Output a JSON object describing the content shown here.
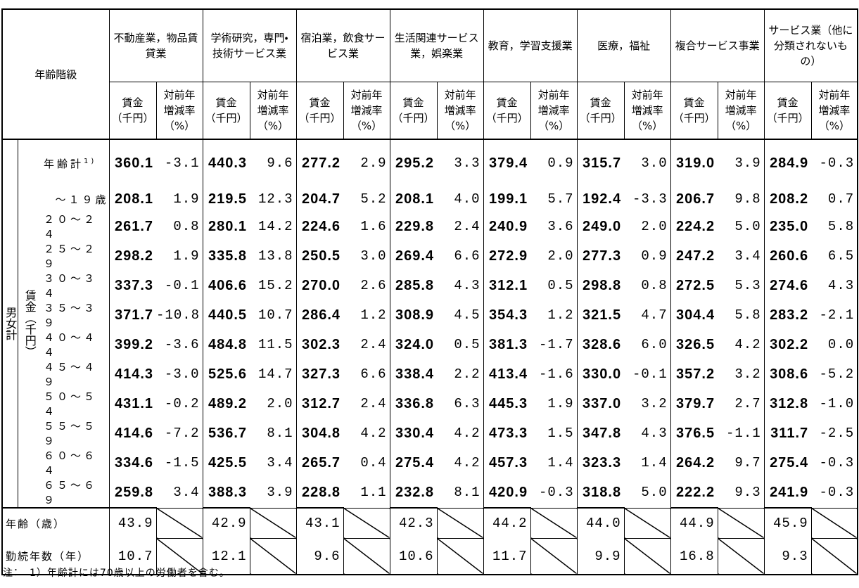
{
  "header": {
    "age_class": "年齢階級",
    "industries": [
      "不動産業，物品賃貸業",
      "学術研究，専門・技術サービス業",
      "宿泊業，飲食サービス業",
      "生活関連サービス業，娯楽業",
      "教育，学習支援業",
      "医療，福祉",
      "複合サービス事業",
      "サービス業（他に分類されないもの）"
    ],
    "wage": [
      "賃金",
      "（千円）"
    ],
    "change": [
      "対前年",
      "増減率",
      "（%）"
    ]
  },
  "group": "男女計",
  "subgroup": "賃金（千円）",
  "rows": [
    {
      "label": "年齢計",
      "note_ref": "1)",
      "values": [
        "360.1",
        "-3.1",
        "440.3",
        "9.6",
        "277.2",
        "2.9",
        "295.2",
        "3.3",
        "379.4",
        "0.9",
        "315.7",
        "3.0",
        "319.0",
        "3.9",
        "284.9",
        "-0.3"
      ]
    },
    {
      "label": "～１９歳",
      "values": [
        "208.1",
        "1.9",
        "219.5",
        "12.3",
        "204.7",
        "5.2",
        "208.1",
        "4.0",
        "199.1",
        "5.7",
        "192.4",
        "-3.3",
        "206.7",
        "9.8",
        "208.2",
        "0.7"
      ]
    },
    {
      "label": "２０～２４",
      "values": [
        "261.7",
        "0.8",
        "280.1",
        "14.2",
        "224.6",
        "1.6",
        "229.8",
        "2.4",
        "240.9",
        "3.6",
        "249.0",
        "2.0",
        "224.2",
        "5.0",
        "235.0",
        "5.8"
      ]
    },
    {
      "label": "２５～２９",
      "values": [
        "298.2",
        "1.9",
        "335.8",
        "13.8",
        "250.5",
        "3.0",
        "269.4",
        "6.6",
        "272.9",
        "2.0",
        "277.3",
        "0.9",
        "247.2",
        "3.4",
        "260.6",
        "6.5"
      ]
    },
    {
      "label": "３０～３４",
      "values": [
        "337.3",
        "-0.1",
        "406.6",
        "15.2",
        "270.0",
        "2.6",
        "285.8",
        "4.3",
        "312.1",
        "0.5",
        "298.8",
        "0.8",
        "272.5",
        "5.3",
        "274.6",
        "4.3"
      ]
    },
    {
      "label": "３５～３９",
      "values": [
        "371.7",
        "-10.8",
        "440.5",
        "10.7",
        "286.4",
        "1.2",
        "308.9",
        "4.5",
        "354.3",
        "1.2",
        "321.5",
        "4.7",
        "304.4",
        "5.8",
        "283.2",
        "-2.1"
      ]
    },
    {
      "label": "４０～４４",
      "values": [
        "399.2",
        "-3.6",
        "484.8",
        "11.5",
        "302.3",
        "2.4",
        "324.0",
        "0.5",
        "381.3",
        "-1.7",
        "328.6",
        "6.0",
        "326.5",
        "4.2",
        "302.2",
        "0.0"
      ]
    },
    {
      "label": "４５～４９",
      "values": [
        "414.3",
        "-3.0",
        "525.6",
        "14.7",
        "327.3",
        "6.6",
        "338.4",
        "2.2",
        "413.4",
        "-1.6",
        "330.0",
        "-0.1",
        "357.2",
        "3.2",
        "308.6",
        "-5.2"
      ]
    },
    {
      "label": "５０～５４",
      "values": [
        "431.1",
        "-0.2",
        "489.2",
        "2.0",
        "312.7",
        "2.4",
        "336.8",
        "6.3",
        "445.3",
        "1.9",
        "337.0",
        "3.2",
        "379.7",
        "2.7",
        "312.8",
        "-1.0"
      ]
    },
    {
      "label": "５５～５９",
      "values": [
        "414.6",
        "-7.2",
        "536.7",
        "8.1",
        "304.8",
        "4.2",
        "330.4",
        "4.2",
        "473.3",
        "1.5",
        "347.8",
        "4.3",
        "376.5",
        "-1.1",
        "311.7",
        "-2.5"
      ]
    },
    {
      "label": "６０～６４",
      "values": [
        "334.6",
        "-1.5",
        "425.5",
        "3.4",
        "265.7",
        "0.4",
        "275.4",
        "4.2",
        "457.3",
        "1.4",
        "323.3",
        "1.4",
        "264.2",
        "9.7",
        "275.4",
        "-0.3"
      ]
    },
    {
      "label": "６５～６９",
      "values": [
        "259.8",
        "3.4",
        "388.3",
        "3.9",
        "228.8",
        "1.1",
        "232.8",
        "8.1",
        "420.9",
        "-0.3",
        "318.8",
        "5.0",
        "222.2",
        "9.3",
        "241.9",
        "-0.3"
      ]
    }
  ],
  "age": {
    "label": "年齢（歳）",
    "values": [
      "43.9",
      "42.9",
      "43.1",
      "42.3",
      "44.2",
      "44.0",
      "44.9",
      "45.9"
    ]
  },
  "tenure": {
    "label": "勤続年数（年）",
    "values": [
      "10.7",
      "12.1",
      "9.6",
      "10.6",
      "11.7",
      "9.9",
      "16.8",
      "9.3"
    ]
  },
  "note": "注：　1）年齢計には70歳以上の労働者を含む。"
}
